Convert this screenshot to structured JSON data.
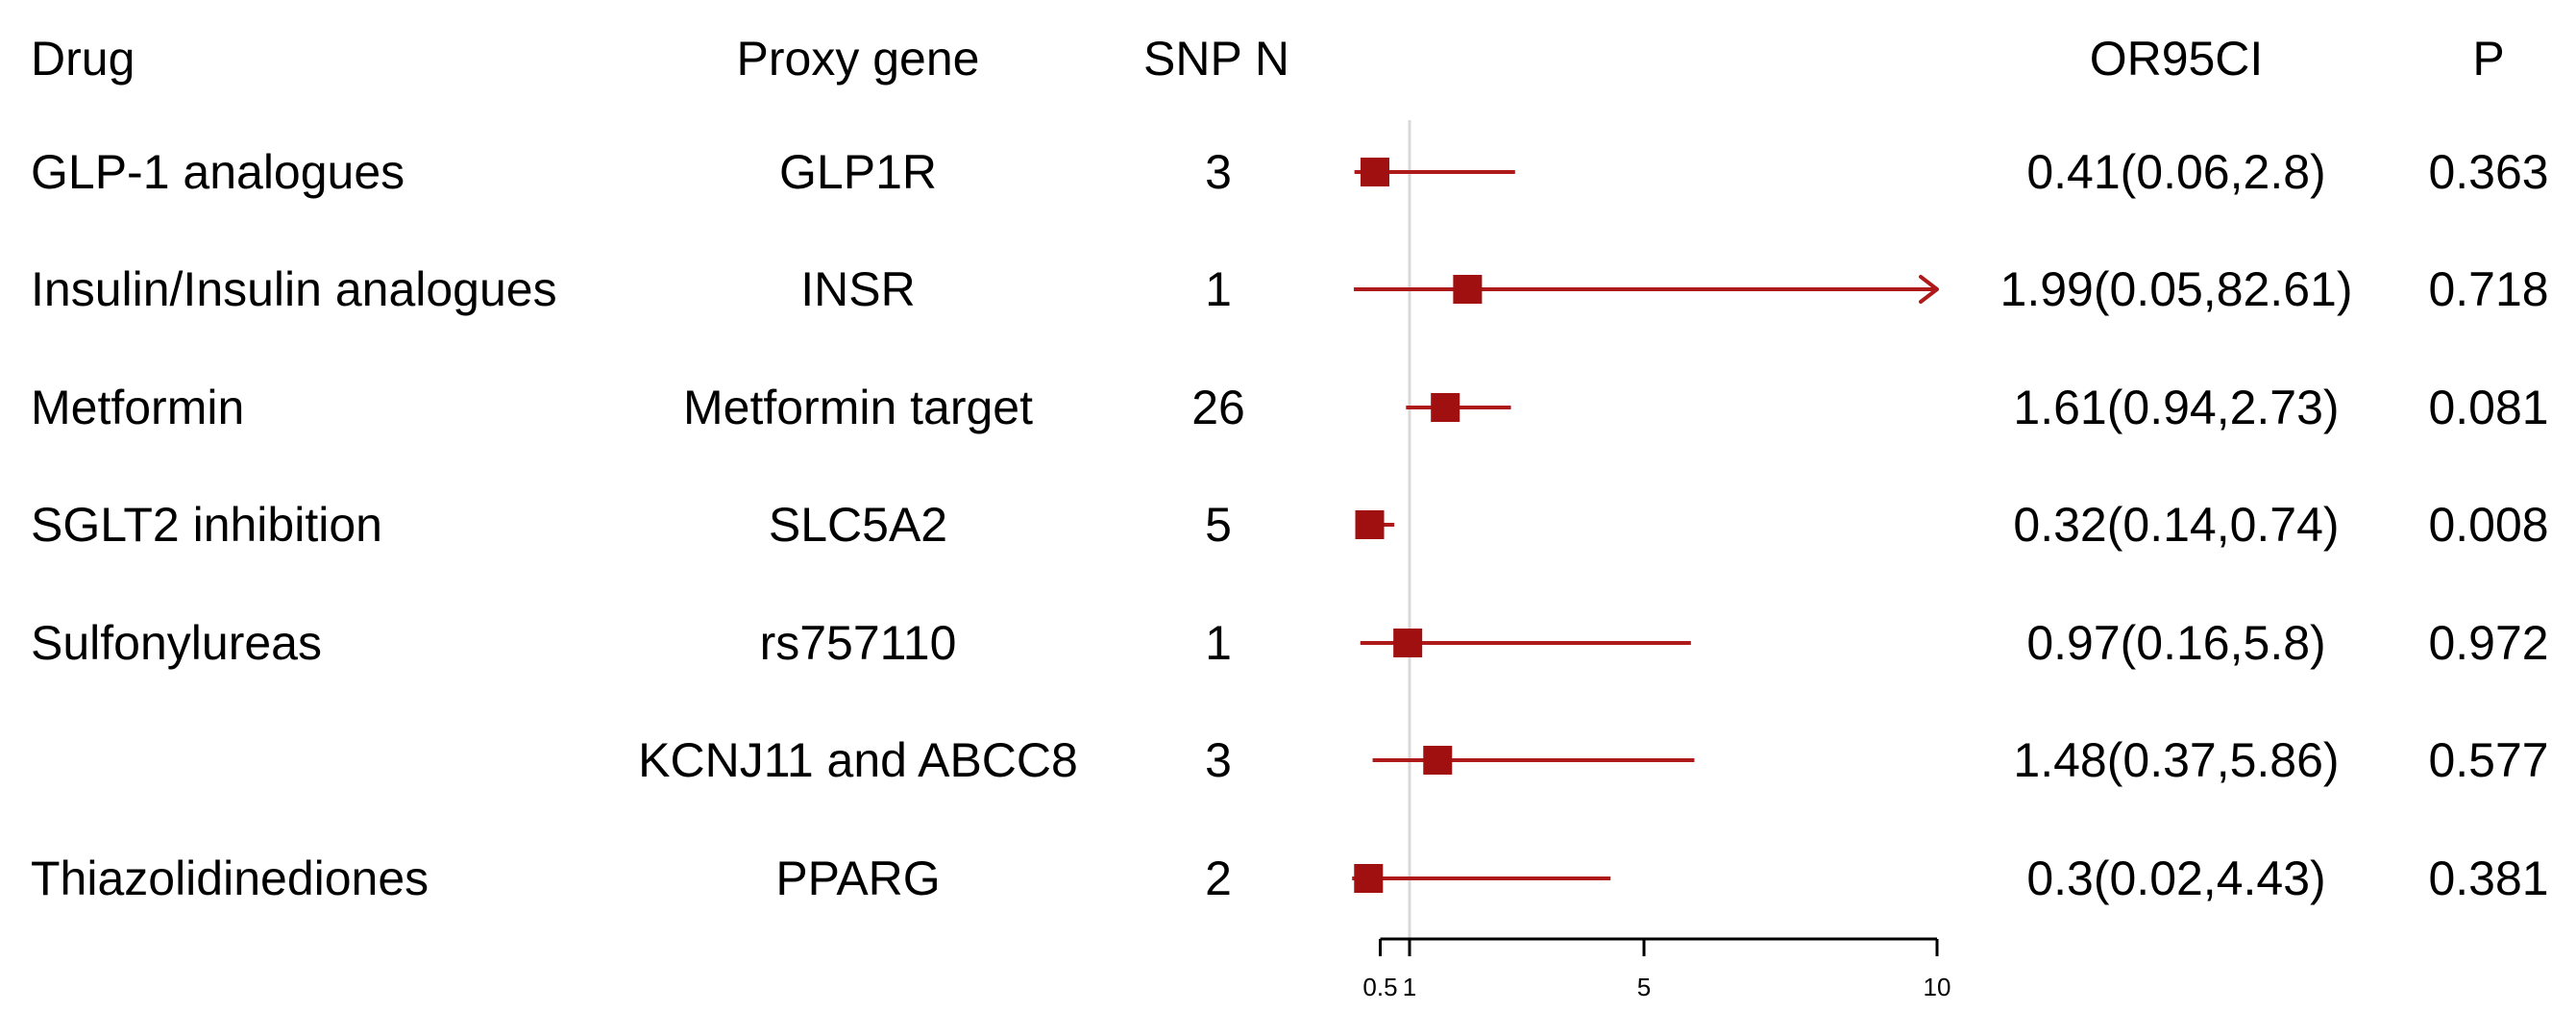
{
  "header": {
    "drug": "Drug",
    "proxy_gene": "Proxy gene",
    "snp_n": "SNP N",
    "or95ci": "OR95CI",
    "p": "P"
  },
  "colors": {
    "marker": "#A01010",
    "ci_line": "#AE1A1A",
    "null_line": "#D9D9D9",
    "axis": "#000000",
    "text": "#000000",
    "background": "#FFFFFF"
  },
  "chart_data": {
    "type": "forest",
    "title": "",
    "xlabel": "",
    "legend": "none",
    "axis": {
      "scale": "linear",
      "range": [
        0.5,
        10
      ],
      "ticks": [
        0.5,
        1,
        5,
        10
      ],
      "tick_labels": [
        "0.5",
        "1",
        "5",
        "10"
      ],
      "null_line_value": 1,
      "grid": false
    },
    "columns": [
      "Drug",
      "Proxy gene",
      "SNP N",
      "OR95CI",
      "P"
    ],
    "rows": [
      {
        "drug": "GLP-1 analogues",
        "proxy_gene": "GLP1R",
        "snp_n": "3",
        "or": 0.41,
        "ci_low": 0.06,
        "ci_high": 2.8,
        "or95ci": "0.41(0.06,2.8)",
        "p": "0.363"
      },
      {
        "drug": "Insulin/Insulin analogues",
        "proxy_gene": "INSR",
        "snp_n": "1",
        "or": 1.99,
        "ci_low": 0.05,
        "ci_high": 82.61,
        "or95ci": "1.99(0.05,82.61)",
        "p": "0.718"
      },
      {
        "drug": "Metformin",
        "proxy_gene": "Metformin target",
        "snp_n": "26",
        "or": 1.61,
        "ci_low": 0.94,
        "ci_high": 2.73,
        "or95ci": "1.61(0.94,2.73)",
        "p": "0.081"
      },
      {
        "drug": "SGLT2 inhibition",
        "proxy_gene": "SLC5A2",
        "snp_n": "5",
        "or": 0.32,
        "ci_low": 0.14,
        "ci_high": 0.74,
        "or95ci": "0.32(0.14,0.74)",
        "p": "0.008"
      },
      {
        "drug": "Sulfonylureas",
        "proxy_gene": "rs757110",
        "snp_n": "1",
        "or": 0.97,
        "ci_low": 0.16,
        "ci_high": 5.8,
        "or95ci": "0.97(0.16,5.8)",
        "p": "0.972"
      },
      {
        "drug": "",
        "proxy_gene": "KCNJ11 and ABCC8",
        "snp_n": "3",
        "or": 1.48,
        "ci_low": 0.37,
        "ci_high": 5.86,
        "or95ci": "1.48(0.37,5.86)",
        "p": "0.577"
      },
      {
        "drug": "Thiazolidinediones",
        "proxy_gene": "PPARG",
        "snp_n": "2",
        "or": 0.3,
        "ci_low": 0.02,
        "ci_high": 4.43,
        "or95ci": "0.3(0.02,4.43)",
        "p": "0.381"
      }
    ]
  }
}
